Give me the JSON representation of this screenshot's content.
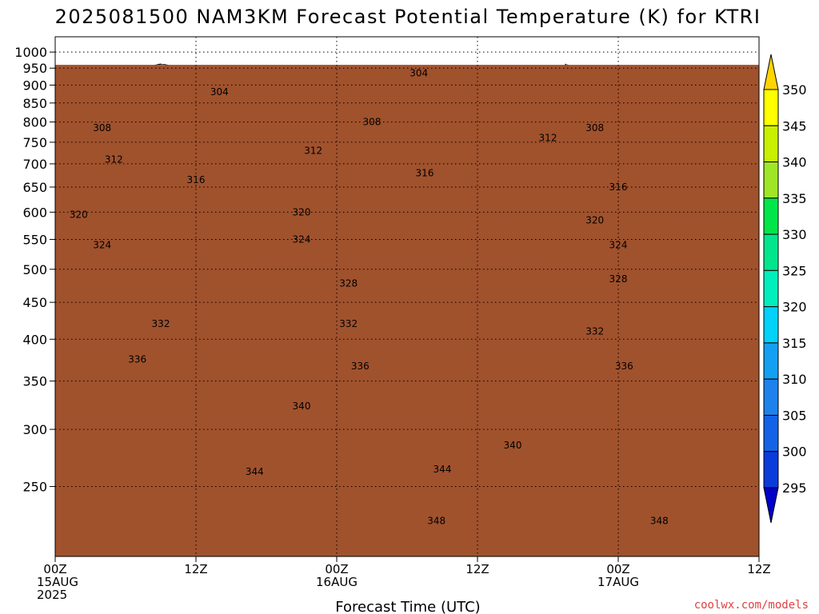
{
  "chart_data": {
    "type": "heatmap",
    "title": "2025081500 NAM3KM Forecast Potential Temperature (K) for KTRI",
    "xlabel": "Forecast Time (UTC)",
    "credit": "coolwx.com/models",
    "x_ticks": [
      {
        "hour": 0,
        "lines": [
          "00Z",
          "15AUG",
          "2025"
        ]
      },
      {
        "hour": 12,
        "lines": [
          "12Z"
        ]
      },
      {
        "hour": 24,
        "lines": [
          "00Z",
          "16AUG"
        ]
      },
      {
        "hour": 36,
        "lines": [
          "12Z"
        ]
      },
      {
        "hour": 48,
        "lines": [
          "00Z",
          "17AUG"
        ]
      },
      {
        "hour": 60,
        "lines": [
          "12Z"
        ]
      }
    ],
    "xlim": [
      0,
      60
    ],
    "y_axis": {
      "scale": "log",
      "reversed": true,
      "ylim": [
        1050,
        200
      ],
      "ticks": [
        250,
        300,
        350,
        400,
        450,
        500,
        550,
        600,
        650,
        700,
        750,
        800,
        850,
        900,
        950,
        1000
      ]
    },
    "grid": true,
    "colorbar": {
      "levels": [
        295,
        300,
        305,
        310,
        315,
        320,
        325,
        330,
        335,
        340,
        345,
        350
      ],
      "colors": [
        "#0000c8",
        "#0a3cdc",
        "#1463e6",
        "#1e82ec",
        "#14a0f2",
        "#00d2fa",
        "#00eebc",
        "#00e68c",
        "#00e64a",
        "#a0e628",
        "#c8f000",
        "#ffff00",
        "#ffd400"
      ],
      "labels": [
        "295",
        "300",
        "305",
        "310",
        "315",
        "320",
        "325",
        "330",
        "335",
        "340",
        "345",
        "350"
      ]
    },
    "ground_color": "#a0522d",
    "contour_labels": [
      {
        "text": "348",
        "hour": 32.5,
        "p": 224
      },
      {
        "text": "348",
        "hour": 51.5,
        "p": 224
      },
      {
        "text": "344",
        "hour": 17,
        "p": 262
      },
      {
        "text": "344",
        "hour": 33,
        "p": 264
      },
      {
        "text": "340",
        "hour": 39,
        "p": 285
      },
      {
        "text": "340",
        "hour": 21,
        "p": 323
      },
      {
        "text": "336",
        "hour": 7,
        "p": 375
      },
      {
        "text": "336",
        "hour": 26,
        "p": 367
      },
      {
        "text": "336",
        "hour": 48.5,
        "p": 367
      },
      {
        "text": "332",
        "hour": 9,
        "p": 420
      },
      {
        "text": "332",
        "hour": 25,
        "p": 420
      },
      {
        "text": "332",
        "hour": 46,
        "p": 410
      },
      {
        "text": "328",
        "hour": 25,
        "p": 478
      },
      {
        "text": "328",
        "hour": 48,
        "p": 485
      },
      {
        "text": "324",
        "hour": 4,
        "p": 540
      },
      {
        "text": "324",
        "hour": 21,
        "p": 550
      },
      {
        "text": "324",
        "hour": 48,
        "p": 540
      },
      {
        "text": "320",
        "hour": 2,
        "p": 595
      },
      {
        "text": "320",
        "hour": 21,
        "p": 600
      },
      {
        "text": "320",
        "hour": 46,
        "p": 585
      },
      {
        "text": "316",
        "hour": 12,
        "p": 665
      },
      {
        "text": "316",
        "hour": 31.5,
        "p": 680
      },
      {
        "text": "316",
        "hour": 48,
        "p": 650
      },
      {
        "text": "312",
        "hour": 5,
        "p": 710
      },
      {
        "text": "312",
        "hour": 22,
        "p": 730
      },
      {
        "text": "312",
        "hour": 42,
        "p": 760
      },
      {
        "text": "308",
        "hour": 4,
        "p": 785
      },
      {
        "text": "308",
        "hour": 27,
        "p": 800
      },
      {
        "text": "308",
        "hour": 46,
        "p": 785
      },
      {
        "text": "304",
        "hour": 14,
        "p": 880
      },
      {
        "text": "304",
        "hour": 31,
        "p": 935
      }
    ]
  }
}
